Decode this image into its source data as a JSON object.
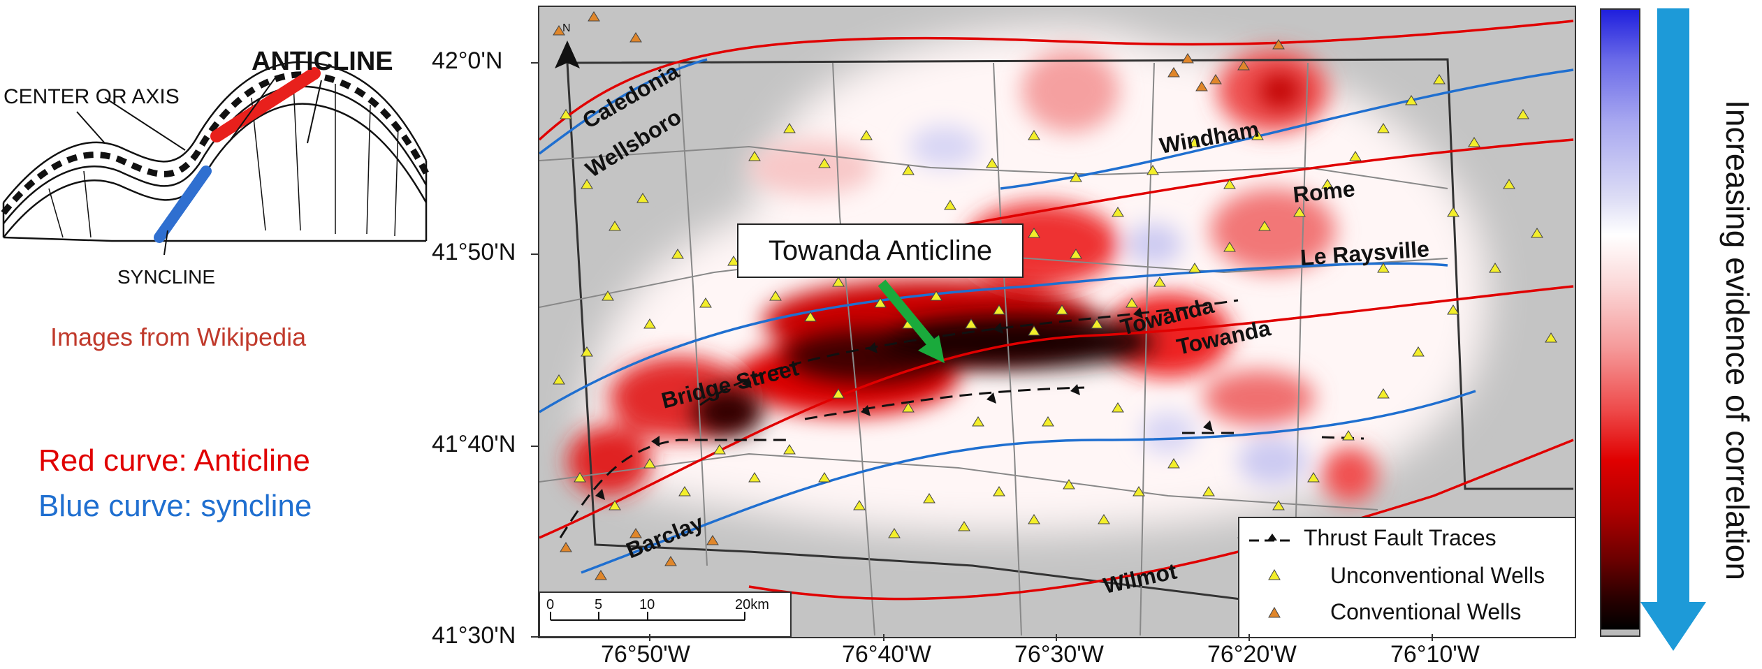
{
  "cross_section": {
    "title": "ANTICLINE",
    "center_label": "CENTER OR AXIS",
    "syncline_label": "SYNCLINE"
  },
  "attribution": "Images from Wikipedia",
  "key": {
    "red": "Red curve: Anticline",
    "blue": "Blue curve: syncline"
  },
  "map": {
    "callout": "Towanda Anticline",
    "north": "N",
    "lat_labels": [
      "42°0'N",
      "41°50'N",
      "41°40'N",
      "41°30'N"
    ],
    "lon_labels": [
      "76°50'W",
      "76°40'W",
      "76°30'W",
      "76°20'W",
      "76°10'W"
    ],
    "fold_names": {
      "caledonia": "Caledonia",
      "wellsboro": "Wellsboro",
      "windham": "Windham",
      "rome": "Rome",
      "le_raysville": "Le Raysville",
      "towanda_1": "Towanda",
      "towanda_2": "Towanda",
      "bridge_street": "Bridge Street",
      "barclay": "Barclay",
      "wilmot": "Wilmot"
    },
    "scale": {
      "ticks": [
        "0",
        "5",
        "10",
        "20km"
      ]
    },
    "legend": {
      "thrust": "Thrust Fault Traces",
      "unconventional": "Unconventional Wells",
      "conventional": "Conventional Wells"
    }
  },
  "colorbar": {
    "label": "Increasing evidence of correlation",
    "top_color": "#1f1fdd",
    "mid_color": "#ffffff",
    "bottom_color": "#000000"
  },
  "colors": {
    "anticline": "#e00000",
    "syncline": "#1f6fd0",
    "arrow_green": "#1aaa3c",
    "arrow_blue": "#1d9ad8",
    "attribution_red": "#c0392b"
  }
}
